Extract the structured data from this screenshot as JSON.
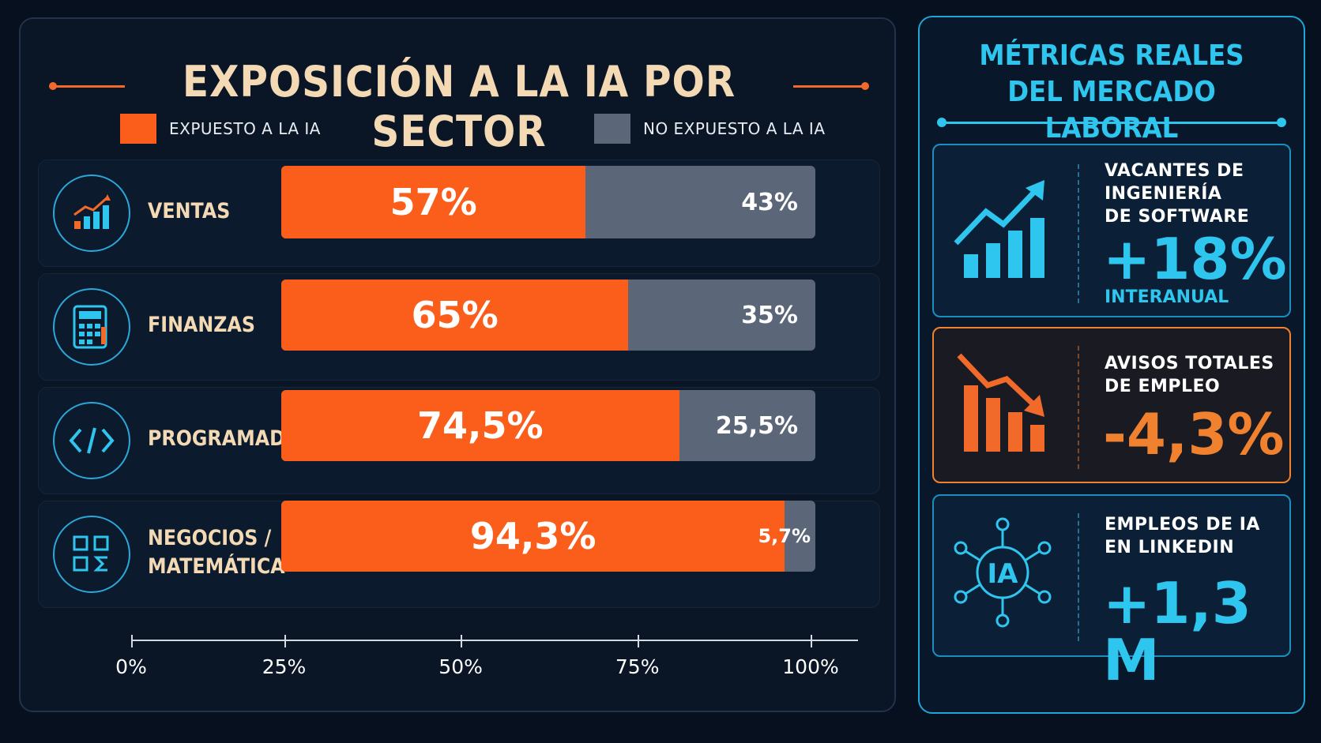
{
  "title": "EXPOSICIÓN A LA IA POR SECTOR",
  "legend": {
    "exposed": "EXPUESTO A LA IA",
    "not_exposed": "NO EXPUESTO A LA IA"
  },
  "colors": {
    "exposed": "#fa5e1a",
    "not_exposed": "#5b6678",
    "accent_blue": "#2ec5ee",
    "accent_orange": "#f0822f",
    "title": "#f3d9b4"
  },
  "rows": [
    {
      "label_line1": "VENTAS",
      "label_line2": "",
      "icon": "growth-chart-icon",
      "exposed_text": "57%",
      "rest_text": "43%"
    },
    {
      "label_line1": "FINANZAS",
      "label_line2": "",
      "icon": "calculator-icon",
      "exposed_text": "65%",
      "rest_text": "35%"
    },
    {
      "label_line1": "PROGRAMADORES",
      "label_line2": "",
      "icon": "code-icon",
      "exposed_text": "74,5%",
      "rest_text": "25,5%"
    },
    {
      "label_line1": "NEGOCIOS /",
      "label_line2": "MATEMÁTICA",
      "icon": "math-symbols-icon",
      "exposed_text": "94,3%",
      "rest_text": "5,7%"
    }
  ],
  "axis_ticks": [
    "0%",
    "25%",
    "50%",
    "75%",
    "100%"
  ],
  "chart_data": {
    "type": "bar",
    "orientation": "horizontal",
    "stacked": true,
    "title": "EXPOSICIÓN A LA IA POR SECTOR",
    "categories": [
      "VENTAS",
      "FINANZAS",
      "PROGRAMADORES",
      "NEGOCIOS / MATEMÁTICA"
    ],
    "series": [
      {
        "name": "EXPUESTO A LA IA",
        "values": [
          57,
          65,
          74.5,
          94.3
        ]
      },
      {
        "name": "NO EXPUESTO A LA IA",
        "values": [
          43,
          35,
          25.5,
          5.7
        ]
      }
    ],
    "xlim": [
      0,
      100
    ],
    "xticks": [
      "0%",
      "25%",
      "50%",
      "75%",
      "100%"
    ],
    "legend_position": "top"
  },
  "metrics": {
    "title_line1": "MÉTRICAS REALES",
    "title_line2": "DEL MERCADO LABORAL",
    "cards": [
      {
        "label_lines": [
          "VACANTES DE",
          "INGENIERÍA",
          "DE SOFTWARE"
        ],
        "value": "+18%",
        "sub": "INTERANUAL",
        "icon": "trend-up-icon"
      },
      {
        "label_lines": [
          "AVISOS TOTALES",
          "DE EMPLEO"
        ],
        "value": "-4,3%",
        "sub": "",
        "icon": "trend-down-icon"
      },
      {
        "label_lines": [
          "EMPLEOS DE IA",
          "EN LINKEDIN"
        ],
        "value": "+1,3 M",
        "sub": "",
        "icon": "ai-network-icon"
      }
    ]
  }
}
